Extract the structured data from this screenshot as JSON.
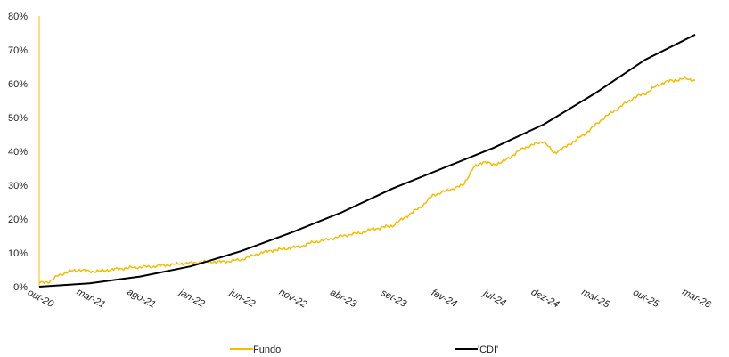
{
  "chart_data": {
    "type": "line",
    "title": "",
    "xlabel": "",
    "ylabel": "",
    "y_ticks": [
      "0%",
      "10%",
      "20%",
      "30%",
      "40%",
      "50%",
      "60%",
      "70%",
      "80%"
    ],
    "ylim": [
      0,
      80
    ],
    "x_ticks": [
      "out-20",
      "mar-21",
      "ago-21",
      "jan-22",
      "jun-22",
      "nov-22",
      "abr-23",
      "set-23",
      "fev-24",
      "jul-24",
      "dez-24",
      "mai-25",
      "out-25",
      "mar-26"
    ],
    "xlim": [
      "out-20",
      "mar-26"
    ],
    "grid": false,
    "legend_position": "bottom",
    "series": [
      {
        "name": "Fundo",
        "color": "#F5BD00",
        "points": [
          [
            "out-20",
            1.0
          ],
          [
            "nov-20",
            1.5
          ],
          [
            "dez-20",
            3.5
          ],
          [
            "jan-21",
            4.5
          ],
          [
            "fev-21",
            5.0
          ],
          [
            "mar-21",
            4.5
          ],
          [
            "abr-21",
            4.6
          ],
          [
            "mai-21",
            5.0
          ],
          [
            "jun-21",
            5.3
          ],
          [
            "jul-21",
            5.6
          ],
          [
            "ago-21",
            5.8
          ],
          [
            "set-21",
            5.9
          ],
          [
            "out-21",
            6.2
          ],
          [
            "nov-21",
            6.5
          ],
          [
            "dez-21",
            6.8
          ],
          [
            "jan-22",
            7.0
          ],
          [
            "fev-22",
            7.2
          ],
          [
            "mar-22",
            7.4
          ],
          [
            "abr-22",
            7.3
          ],
          [
            "mai-22",
            7.6
          ],
          [
            "jun-22",
            8.0
          ],
          [
            "jul-22",
            9.0
          ],
          [
            "ago-22",
            10.0
          ],
          [
            "set-22",
            10.7
          ],
          [
            "out-22",
            11.0
          ],
          [
            "nov-22",
            11.5
          ],
          [
            "dez-22",
            12.0
          ],
          [
            "jan-23",
            13.0
          ],
          [
            "fev-23",
            13.6
          ],
          [
            "mar-23",
            14.2
          ],
          [
            "abr-23",
            15.0
          ],
          [
            "mai-23",
            15.5
          ],
          [
            "jun-23",
            16.0
          ],
          [
            "jul-23",
            17.0
          ],
          [
            "ago-23",
            17.5
          ],
          [
            "set-23",
            18.0
          ],
          [
            "out-23",
            20.0
          ],
          [
            "nov-23",
            22.0
          ],
          [
            "dez-23",
            24.0
          ],
          [
            "jan-24",
            27.0
          ],
          [
            "fev-24",
            28.0
          ],
          [
            "mar-24",
            29.0
          ],
          [
            "abr-24",
            30.0
          ],
          [
            "mai-24",
            35.0
          ],
          [
            "jun-24",
            37.0
          ],
          [
            "jul-24",
            36.0
          ],
          [
            "ago-24",
            37.0
          ],
          [
            "set-24",
            39.0
          ],
          [
            "out-24",
            41.0
          ],
          [
            "nov-24",
            42.0
          ],
          [
            "dez-24",
            43.0
          ],
          [
            "jan-25",
            39.5
          ],
          [
            "fev-25",
            41.0
          ],
          [
            "mar-25",
            43.0
          ],
          [
            "abr-25",
            45.0
          ],
          [
            "mai-25",
            47.5
          ],
          [
            "jun-25",
            50.0
          ],
          [
            "jul-25",
            52.0
          ],
          [
            "ago-25",
            54.0
          ],
          [
            "set-25",
            56.0
          ],
          [
            "out-25",
            57.0
          ],
          [
            "nov-25",
            59.0
          ],
          [
            "dez-25",
            60.5
          ],
          [
            "jan-26",
            61.0
          ],
          [
            "fev-26",
            61.5
          ],
          [
            "mar-26",
            61.0
          ]
        ]
      },
      {
        "name": "'CDI'",
        "color": "#000000",
        "points": [
          [
            "out-20",
            0.0
          ],
          [
            "mar-21",
            1.0
          ],
          [
            "ago-21",
            3.0
          ],
          [
            "jan-22",
            6.0
          ],
          [
            "jun-22",
            10.5
          ],
          [
            "nov-22",
            16.0
          ],
          [
            "abr-23",
            22.0
          ],
          [
            "set-23",
            29.0
          ],
          [
            "fev-24",
            35.0
          ],
          [
            "jul-24",
            41.0
          ],
          [
            "dez-24",
            48.0
          ],
          [
            "mai-25",
            57.0
          ],
          [
            "out-25",
            67.0
          ],
          [
            "mar-26",
            74.5
          ]
        ]
      }
    ]
  }
}
